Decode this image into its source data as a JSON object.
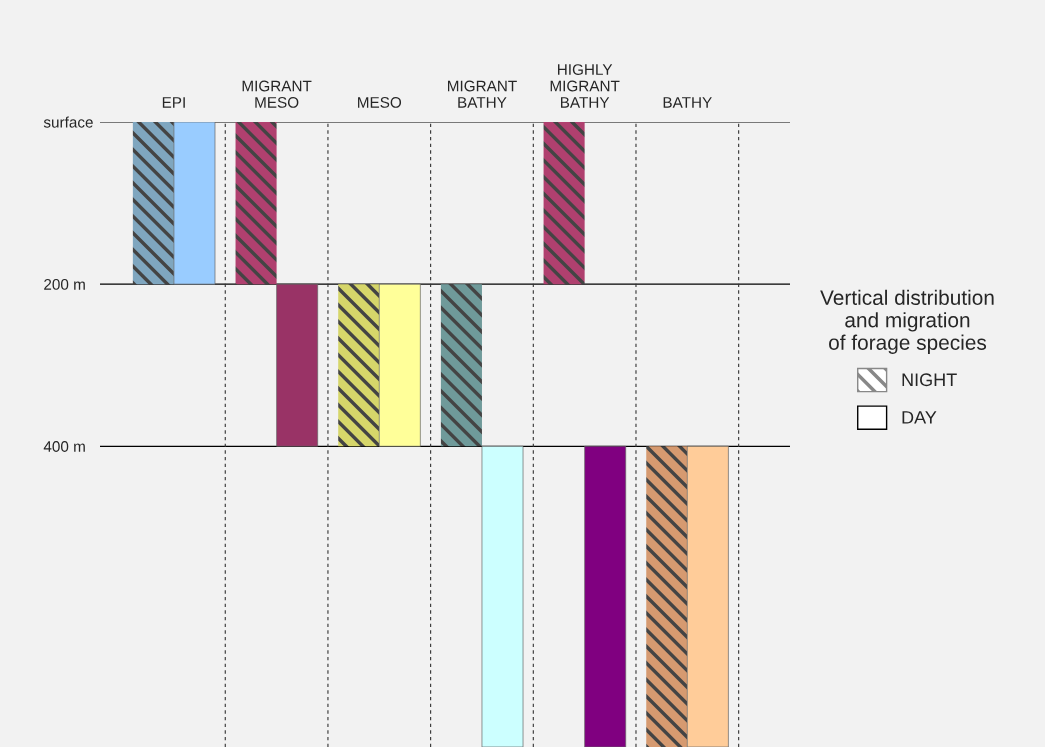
{
  "chart_data": {
    "type": "bar",
    "categories": [
      "EPI",
      "MIGRANT\nMESO",
      "MESO",
      "MIGRANT\nBATHY",
      "HIGHLY\nMIGRANT\nBATHY",
      "BATHY"
    ],
    "series": [
      {
        "name": "NIGHT",
        "colors": [
          "#7fa6bf",
          "#b0406f",
          "#d6d66a",
          "#6f9a9a",
          "#b0406f",
          "#d69a70"
        ],
        "base": [
          0,
          0,
          200,
          200,
          0,
          400
        ],
        "values": [
          200,
          200,
          200,
          200,
          200,
          371
        ]
      },
      {
        "name": "DAY",
        "colors": [
          "#99ccff",
          "#993366",
          "#ffff99",
          "#ccffff",
          "#800080",
          "#ffcc99"
        ],
        "base": [
          0,
          200,
          200,
          400,
          400,
          400
        ],
        "values": [
          200,
          200,
          200,
          371,
          371,
          371
        ]
      }
    ],
    "ylim": [
      771,
      0
    ],
    "yticks": [
      {
        "value": 0,
        "label": "surface"
      },
      {
        "value": 200,
        "label": "200 m"
      },
      {
        "value": 400,
        "label": "400 m"
      }
    ],
    "grid": "y",
    "legend": "right",
    "legend_title": "Vertical distribution\nand migration\nof forage species"
  }
}
